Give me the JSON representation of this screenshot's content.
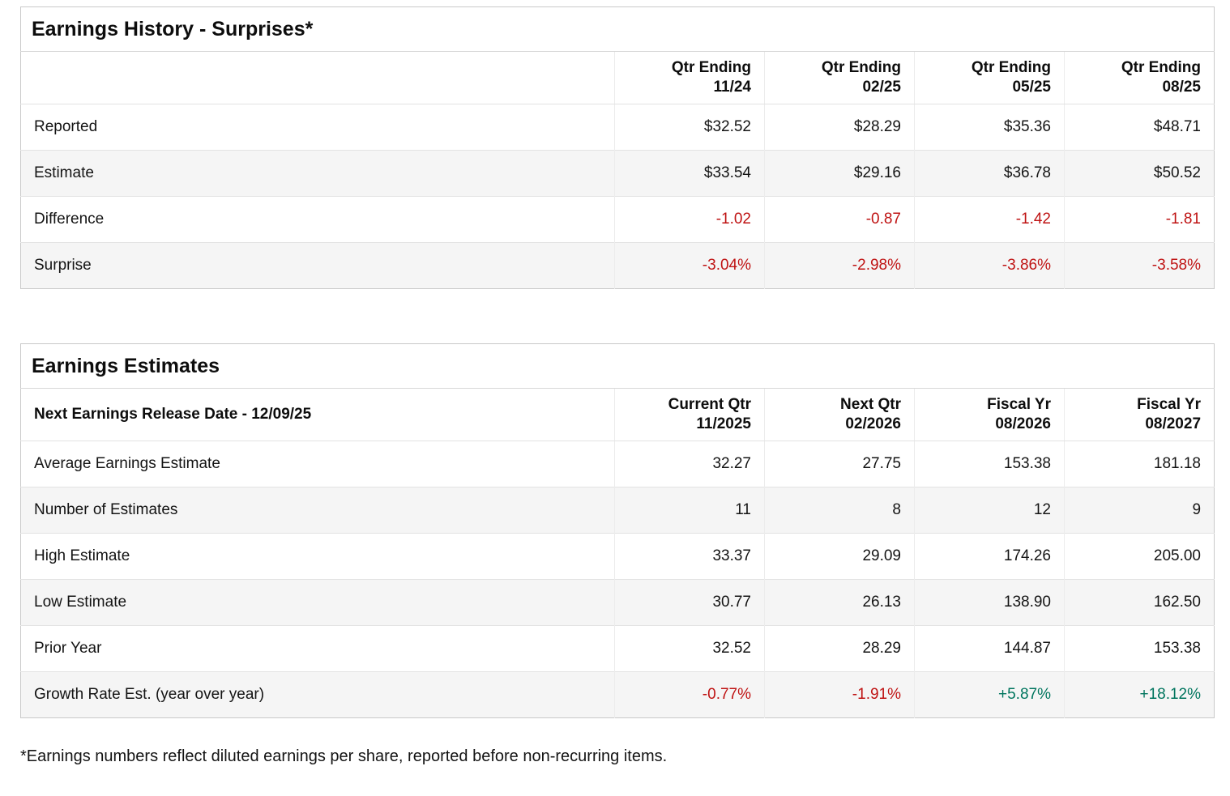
{
  "colors": {
    "negative": "#bf1313",
    "positive": "#00755e"
  },
  "surprises": {
    "title": "Earnings History - Surprises*",
    "corner": "",
    "columns": [
      {
        "l1": "Qtr Ending",
        "l2": "11/24"
      },
      {
        "l1": "Qtr Ending",
        "l2": "02/25"
      },
      {
        "l1": "Qtr Ending",
        "l2": "05/25"
      },
      {
        "l1": "Qtr Ending",
        "l2": "08/25"
      }
    ],
    "rows": [
      {
        "label": "Reported",
        "cells": [
          {
            "v": "$32.52"
          },
          {
            "v": "$28.29"
          },
          {
            "v": "$35.36"
          },
          {
            "v": "$48.71"
          }
        ]
      },
      {
        "label": "Estimate",
        "cells": [
          {
            "v": "$33.54"
          },
          {
            "v": "$29.16"
          },
          {
            "v": "$36.78"
          },
          {
            "v": "$50.52"
          }
        ]
      },
      {
        "label": "Difference",
        "cells": [
          {
            "v": "-1.02",
            "t": "neg"
          },
          {
            "v": "-0.87",
            "t": "neg"
          },
          {
            "v": "-1.42",
            "t": "neg"
          },
          {
            "v": "-1.81",
            "t": "neg"
          }
        ]
      },
      {
        "label": "Surprise",
        "cells": [
          {
            "v": "-3.04%",
            "t": "neg"
          },
          {
            "v": "-2.98%",
            "t": "neg"
          },
          {
            "v": "-3.86%",
            "t": "neg"
          },
          {
            "v": "-3.58%",
            "t": "neg"
          }
        ]
      }
    ]
  },
  "estimates": {
    "title": "Earnings Estimates",
    "corner": "Next Earnings Release Date - 12/09/25",
    "columns": [
      {
        "l1": "Current Qtr",
        "l2": "11/2025"
      },
      {
        "l1": "Next Qtr",
        "l2": "02/2026"
      },
      {
        "l1": "Fiscal Yr",
        "l2": "08/2026"
      },
      {
        "l1": "Fiscal Yr",
        "l2": "08/2027"
      }
    ],
    "rows": [
      {
        "label": "Average Earnings Estimate",
        "cells": [
          {
            "v": "32.27"
          },
          {
            "v": "27.75"
          },
          {
            "v": "153.38"
          },
          {
            "v": "181.18"
          }
        ]
      },
      {
        "label": "Number of Estimates",
        "cells": [
          {
            "v": "11"
          },
          {
            "v": "8"
          },
          {
            "v": "12"
          },
          {
            "v": "9"
          }
        ]
      },
      {
        "label": "High Estimate",
        "cells": [
          {
            "v": "33.37"
          },
          {
            "v": "29.09"
          },
          {
            "v": "174.26"
          },
          {
            "v": "205.00"
          }
        ]
      },
      {
        "label": "Low Estimate",
        "cells": [
          {
            "v": "30.77"
          },
          {
            "v": "26.13"
          },
          {
            "v": "138.90"
          },
          {
            "v": "162.50"
          }
        ]
      },
      {
        "label": "Prior Year",
        "cells": [
          {
            "v": "32.52"
          },
          {
            "v": "28.29"
          },
          {
            "v": "144.87"
          },
          {
            "v": "153.38"
          }
        ]
      },
      {
        "label": "Growth Rate Est. (year over year)",
        "cells": [
          {
            "v": "-0.77%",
            "t": "neg"
          },
          {
            "v": "-1.91%",
            "t": "neg"
          },
          {
            "v": "+5.87%",
            "t": "pos"
          },
          {
            "v": "+18.12%",
            "t": "pos"
          }
        ]
      }
    ]
  },
  "footnote": "*Earnings numbers reflect diluted earnings per share, reported before non-recurring items."
}
